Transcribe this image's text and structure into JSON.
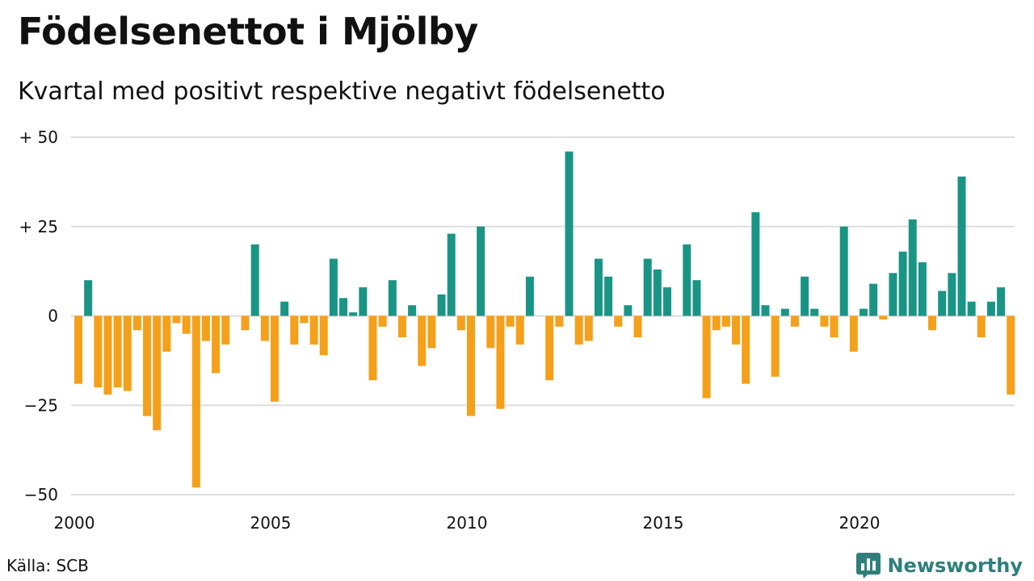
{
  "title": "Födelsenettot i Mjölby",
  "subtitle": "Kvartal med positivt respektive negativt födelsenetto",
  "source": "Källa: SCB",
  "brand": {
    "name": "Newsworthy",
    "icon": "bar-chart-speech-bubble-icon"
  },
  "colors": {
    "positive": "#1a9585",
    "negative": "#f5a01a",
    "grid": "#dddddd",
    "brand": "#2e7f7b"
  },
  "chart_data": {
    "type": "bar",
    "x_start": "2000 Q1",
    "x_ticks": [
      "2000",
      "2005",
      "2010",
      "2015",
      "2020"
    ],
    "y_ticks": [
      {
        "value": 50,
        "label": "+ 50"
      },
      {
        "value": 25,
        "label": "+ 25"
      },
      {
        "value": 0,
        "label": "0"
      },
      {
        "value": -25,
        "label": "−25"
      },
      {
        "value": -50,
        "label": "−50"
      }
    ],
    "ylim": [
      -50,
      50
    ],
    "grid": true,
    "values": [
      -19,
      10,
      -20,
      -22,
      -20,
      -21,
      -4,
      -28,
      -32,
      -10,
      -2,
      -5,
      -48,
      -7,
      -16,
      -8,
      0,
      -4,
      20,
      -7,
      -24,
      4,
      -8,
      -2,
      -8,
      -11,
      16,
      5,
      1,
      8,
      -18,
      -3,
      10,
      -6,
      3,
      -14,
      -9,
      6,
      23,
      -4,
      -28,
      25,
      -9,
      -26,
      -3,
      -8,
      11,
      0,
      -18,
      -3,
      46,
      -8,
      -7,
      16,
      11,
      -3,
      3,
      -6,
      16,
      13,
      8,
      0,
      20,
      10,
      -23,
      -4,
      -3,
      -8,
      -19,
      29,
      3,
      -17,
      2,
      -3,
      11,
      2,
      -3,
      -6,
      25,
      -10,
      2,
      9,
      -1,
      12,
      18,
      27,
      15,
      -4,
      7,
      12,
      39,
      4,
      -6,
      4,
      8,
      -22
    ]
  }
}
